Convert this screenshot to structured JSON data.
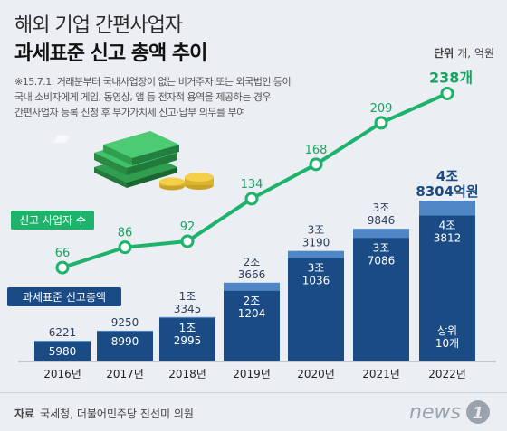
{
  "header": {
    "title_line1": "해외 기업 간편사업자",
    "title_line2": "과세표준 신고 총액 추이",
    "unit_label": "단위",
    "unit_value": "개, 억원",
    "note_lines": [
      "※15.7.1. 거래분부터 국내사업장이 없는 비거주자 또는 외국법인 등이",
      "국내 소비자에게 게임, 동영상, 앱 등 전자적 용역을 제공하는 경우",
      "간편사업자 등록 신청 후 부가가치세 신고·납부 의무를 부여"
    ]
  },
  "footer": {
    "source_label": "자료",
    "source_value": "국세청, 더불어민주당 진선미 의원",
    "logo_text": "news",
    "logo_num": "1"
  },
  "chart_data": {
    "type": "bar",
    "categories": [
      "2016년",
      "2017년",
      "2018년",
      "2019년",
      "2020년",
      "2021년",
      "2022년"
    ],
    "series": [
      {
        "name": "과세표준 신고총액",
        "values": [
          6221,
          9250,
          13345,
          23666,
          33190,
          39846,
          48304
        ],
        "total_labels": [
          [
            "6221"
          ],
          [
            "9250"
          ],
          [
            "1조",
            "3345"
          ],
          [
            "2조",
            "3666"
          ],
          [
            "3조",
            "3190"
          ],
          [
            "3조",
            "9846"
          ],
          [
            "4조",
            "8304억원"
          ]
        ]
      },
      {
        "name": "상위 10개",
        "values": [
          5980,
          8990,
          12995,
          21204,
          31036,
          37086,
          43812
        ],
        "labels": [
          [
            "5980"
          ],
          [
            "8990"
          ],
          [
            "1조",
            "2995"
          ],
          [
            "2조",
            "1204"
          ],
          [
            "3조",
            "1036"
          ],
          [
            "3조",
            "7086"
          ],
          [
            "4조",
            "3812"
          ]
        ]
      },
      {
        "name": "신고 사업자 수",
        "type": "line",
        "values": [
          66,
          86,
          92,
          134,
          168,
          209,
          238
        ],
        "labels": [
          "66",
          "86",
          "92",
          "134",
          "168",
          "209",
          "238개"
        ]
      }
    ],
    "bar_inner_note": [
      "상위",
      "10개"
    ],
    "colors": {
      "top10": "#1b4b85",
      "total": "#4f86c6",
      "line": "#1db36b",
      "line_text": "#18a360"
    }
  }
}
